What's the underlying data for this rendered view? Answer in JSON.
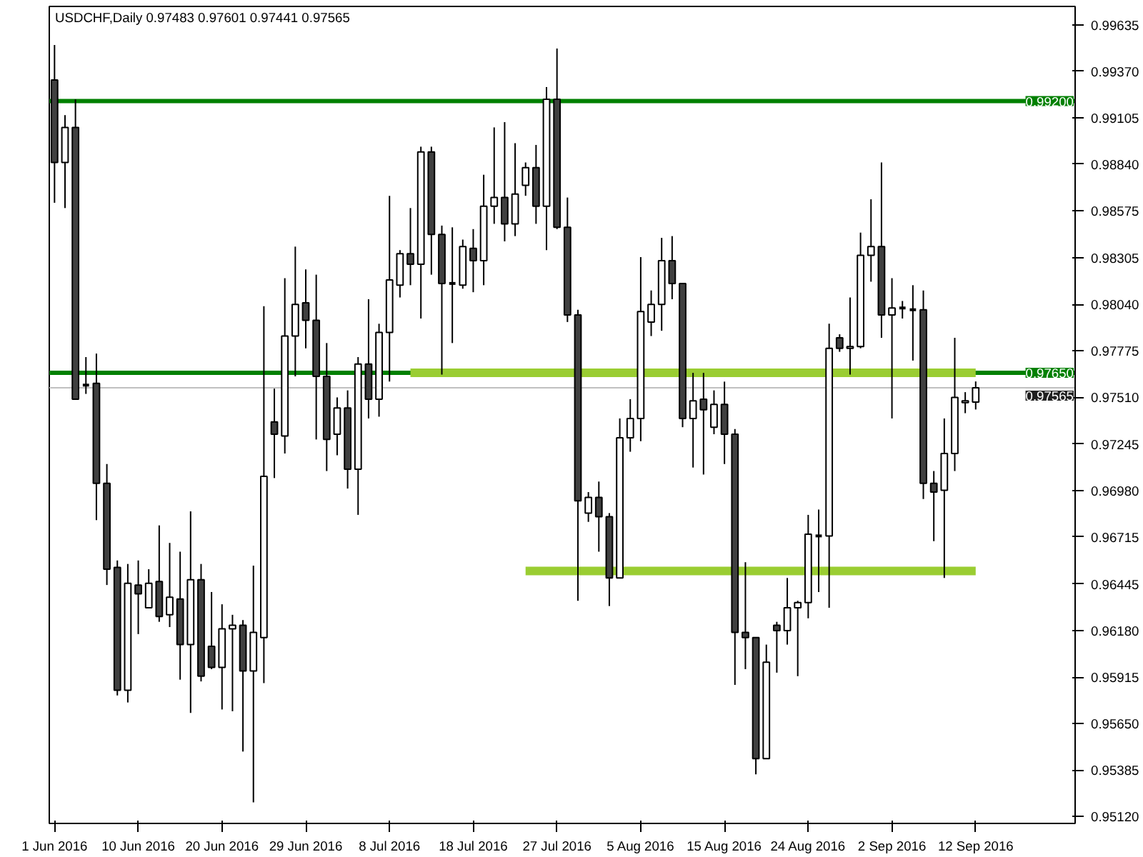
{
  "chart_data": {
    "type": "candlestick",
    "title": "USDCHF,Daily 0.97483 0.97601 0.97441 0.97565",
    "categories": [
      "1 Jun 2016",
      null,
      null,
      null,
      null,
      null,
      null,
      null,
      "10 Jun 2016",
      null,
      null,
      null,
      null,
      null,
      null,
      null,
      "20 Jun 2016",
      null,
      null,
      null,
      null,
      null,
      null,
      null,
      "29 Jun 2016",
      null,
      null,
      null,
      null,
      null,
      null,
      null,
      "8 Jul 2016",
      null,
      null,
      null,
      null,
      null,
      null,
      null,
      "18 Jul 2016",
      null,
      null,
      null,
      null,
      null,
      null,
      null,
      "27 Jul 2016",
      null,
      null,
      null,
      null,
      null,
      null,
      null,
      "5 Aug 2016",
      null,
      null,
      null,
      null,
      null,
      null,
      null,
      "15 Aug 2016",
      null,
      null,
      null,
      null,
      null,
      null,
      null,
      "24 Aug 2016",
      null,
      null,
      null,
      null,
      null,
      null,
      null,
      "2 Sep 2016",
      null,
      null,
      null,
      null,
      null,
      null,
      null,
      "12 Sep 2016"
    ],
    "ohlc": [
      [
        0.9932,
        0.9952,
        0.9862,
        0.9885
      ],
      [
        0.9885,
        0.9912,
        0.9859,
        0.9905
      ],
      [
        0.9905,
        0.9921,
        0.975,
        0.975
      ],
      [
        0.9758,
        0.9774,
        0.9753,
        0.9758
      ],
      [
        0.9759,
        0.9776,
        0.9681,
        0.9702
      ],
      [
        0.9702,
        0.9713,
        0.9644,
        0.9653
      ],
      [
        0.9654,
        0.9658,
        0.9581,
        0.9584
      ],
      [
        0.9584,
        0.9656,
        0.9577,
        0.9645
      ],
      [
        0.9644,
        0.9658,
        0.9616,
        0.9639
      ],
      [
        0.9631,
        0.9653,
        0.9631,
        0.9645
      ],
      [
        0.9646,
        0.9678,
        0.9623,
        0.9626
      ],
      [
        0.9627,
        0.9668,
        0.962,
        0.9637
      ],
      [
        0.9636,
        0.9663,
        0.959,
        0.961
      ],
      [
        0.961,
        0.9686,
        0.9571,
        0.9647
      ],
      [
        0.9647,
        0.9656,
        0.9589,
        0.9592
      ],
      [
        0.9609,
        0.964,
        0.9596,
        0.9597
      ],
      [
        0.9597,
        0.9633,
        0.9573,
        0.9619
      ],
      [
        0.9619,
        0.9627,
        0.9572,
        0.9621
      ],
      [
        0.9621,
        0.9624,
        0.9549,
        0.9595
      ],
      [
        0.9595,
        0.9655,
        0.952,
        0.9617
      ],
      [
        0.9614,
        0.9803,
        0.9588,
        0.9706
      ],
      [
        0.9737,
        0.9756,
        0.9705,
        0.973
      ],
      [
        0.9729,
        0.9819,
        0.9719,
        0.9786
      ],
      [
        0.9786,
        0.9837,
        0.9763,
        0.9804
      ],
      [
        0.9805,
        0.9824,
        0.9779,
        0.9795
      ],
      [
        0.9795,
        0.9821,
        0.9727,
        0.9763
      ],
      [
        0.9763,
        0.9782,
        0.9709,
        0.9727
      ],
      [
        0.973,
        0.9751,
        0.9718,
        0.9745
      ],
      [
        0.9745,
        0.9755,
        0.9699,
        0.971
      ],
      [
        0.971,
        0.9774,
        0.9684,
        0.977
      ],
      [
        0.977,
        0.9807,
        0.9739,
        0.975
      ],
      [
        0.975,
        0.9793,
        0.974,
        0.9788
      ],
      [
        0.9788,
        0.9866,
        0.976,
        0.9818
      ],
      [
        0.9815,
        0.9835,
        0.9808,
        0.9833
      ],
      [
        0.9833,
        0.9859,
        0.9815,
        0.9827
      ],
      [
        0.9827,
        0.9894,
        0.9796,
        0.9891
      ],
      [
        0.9891,
        0.9894,
        0.9821,
        0.9844
      ],
      [
        0.9844,
        0.9849,
        0.9764,
        0.9816
      ],
      [
        0.9816,
        0.9848,
        0.9782,
        0.9816
      ],
      [
        0.9815,
        0.9841,
        0.9813,
        0.9837
      ],
      [
        0.9836,
        0.9847,
        0.9811,
        0.9829
      ],
      [
        0.9829,
        0.9878,
        0.9815,
        0.986
      ],
      [
        0.986,
        0.9905,
        0.985,
        0.9865
      ],
      [
        0.9865,
        0.9908,
        0.984,
        0.985
      ],
      [
        0.985,
        0.9896,
        0.9843,
        0.9867
      ],
      [
        0.9872,
        0.9885,
        0.9866,
        0.9882
      ],
      [
        0.9882,
        0.9895,
        0.985,
        0.986
      ],
      [
        0.986,
        0.9928,
        0.9835,
        0.9921
      ],
      [
        0.9921,
        0.995,
        0.9847,
        0.9848
      ],
      [
        0.9848,
        0.9865,
        0.9794,
        0.9798
      ],
      [
        0.9798,
        0.9801,
        0.9635,
        0.9692
      ],
      [
        0.9685,
        0.9697,
        0.968,
        0.9694
      ],
      [
        0.9694,
        0.9703,
        0.9663,
        0.9683
      ],
      [
        0.9683,
        0.9685,
        0.9632,
        0.9648
      ],
      [
        0.9648,
        0.9739,
        0.9648,
        0.9728
      ],
      [
        0.9728,
        0.975,
        0.972,
        0.9739
      ],
      [
        0.9739,
        0.9831,
        0.9726,
        0.98
      ],
      [
        0.9794,
        0.9812,
        0.9786,
        0.9804
      ],
      [
        0.9804,
        0.9842,
        0.9789,
        0.9829
      ],
      [
        0.9829,
        0.9843,
        0.9807,
        0.9816
      ],
      [
        0.9816,
        0.9816,
        0.9734,
        0.9739
      ],
      [
        0.9739,
        0.9765,
        0.9711,
        0.9749
      ],
      [
        0.975,
        0.9765,
        0.9707,
        0.9744
      ],
      [
        0.9734,
        0.9755,
        0.973,
        0.9747
      ],
      [
        0.9747,
        0.976,
        0.9713,
        0.973
      ],
      [
        0.973,
        0.9733,
        0.9587,
        0.9617
      ],
      [
        0.9617,
        0.9657,
        0.9596,
        0.9614
      ],
      [
        0.9614,
        0.9614,
        0.9536,
        0.9545
      ],
      [
        0.9545,
        0.961,
        0.9545,
        0.96
      ],
      [
        0.9621,
        0.9623,
        0.9594,
        0.9618
      ],
      [
        0.9618,
        0.9648,
        0.961,
        0.9631
      ],
      [
        0.9631,
        0.9635,
        0.9592,
        0.9634
      ],
      [
        0.9634,
        0.9684,
        0.9625,
        0.9673
      ],
      [
        0.9672,
        0.9687,
        0.964,
        0.9672
      ],
      [
        0.9672,
        0.9793,
        0.9631,
        0.9779
      ],
      [
        0.9785,
        0.9787,
        0.9777,
        0.9779
      ],
      [
        0.9779,
        0.9808,
        0.9764,
        0.978
      ],
      [
        0.978,
        0.9845,
        0.9779,
        0.9832
      ],
      [
        0.9832,
        0.9864,
        0.9817,
        0.9837
      ],
      [
        0.9837,
        0.9885,
        0.9785,
        0.9798
      ],
      [
        0.9798,
        0.9819,
        0.9739,
        0.9802
      ],
      [
        0.9802,
        0.9806,
        0.9796,
        0.9802
      ],
      [
        0.9801,
        0.9815,
        0.9772,
        0.9801
      ],
      [
        0.9801,
        0.9812,
        0.9693,
        0.9702
      ],
      [
        0.9702,
        0.9709,
        0.9669,
        0.9697
      ],
      [
        0.9698,
        0.9739,
        0.9648,
        0.9719
      ],
      [
        0.9719,
        0.9785,
        0.9709,
        0.9751
      ],
      [
        0.9748,
        0.9754,
        0.9742,
        0.9749
      ],
      [
        0.97483,
        0.97601,
        0.97441,
        0.97565
      ]
    ],
    "series": [
      {
        "type": "line",
        "color": "#9acd32",
        "values": [
          null,
          null,
          null,
          null,
          null,
          null,
          null,
          null,
          null,
          null,
          null,
          null,
          null,
          null,
          null,
          null,
          null,
          null,
          null,
          null,
          null,
          null,
          null,
          null,
          null,
          null,
          null,
          null,
          null,
          null,
          null,
          null,
          null,
          null,
          0.9765,
          0.9765,
          0.9765,
          0.9765,
          0.9765,
          0.9765,
          0.9765,
          0.9765,
          0.9765,
          0.9765,
          0.9765,
          0.9765,
          0.9765,
          0.9765,
          0.9765,
          0.9765,
          0.9765,
          0.9765,
          0.9765,
          0.9765,
          0.9765,
          0.9765,
          0.9765,
          0.9765,
          0.9765,
          0.9765,
          0.9765,
          0.9765,
          0.9765,
          0.9765,
          0.9765,
          0.9765,
          0.9765,
          0.9765,
          0.9765,
          0.9765,
          0.9765,
          0.9765,
          0.9765,
          0.9765,
          0.9765,
          0.9765,
          0.9765,
          0.9765,
          0.9765,
          0.9765,
          0.9765,
          0.9765,
          0.9765,
          0.9765,
          0.9765,
          0.9765,
          0.9765,
          0.9765,
          0.9765
        ]
      },
      {
        "type": "line",
        "color": "#9acd32",
        "values": [
          null,
          null,
          null,
          null,
          null,
          null,
          null,
          null,
          null,
          null,
          null,
          null,
          null,
          null,
          null,
          null,
          null,
          null,
          null,
          null,
          null,
          null,
          null,
          null,
          null,
          null,
          null,
          null,
          null,
          null,
          null,
          null,
          null,
          null,
          null,
          null,
          null,
          null,
          null,
          null,
          null,
          null,
          null,
          null,
          null,
          0.9652,
          0.9652,
          0.9652,
          0.9652,
          0.9652,
          0.9652,
          0.9652,
          0.9652,
          0.9652,
          0.9652,
          0.9652,
          0.9652,
          0.9652,
          0.9652,
          0.9652,
          0.9652,
          0.9652,
          0.9652,
          0.9652,
          0.9652,
          0.9652,
          0.9652,
          0.9652,
          0.9652,
          0.9652,
          0.9652,
          0.9652,
          0.9652,
          0.9652,
          0.9652,
          0.9652,
          0.9652,
          0.9652,
          0.9652,
          0.9652,
          0.9652,
          0.9652,
          0.9652,
          0.9652,
          0.9652,
          0.9652,
          0.9652,
          0.9652,
          0.9652
        ]
      }
    ],
    "ylim": [
      0.9508,
      0.9974
    ],
    "yticks": [
      {
        "value": 0.99635,
        "label": "0.99635"
      },
      {
        "value": 0.9937,
        "label": "0.99370"
      },
      {
        "value": 0.99105,
        "label": "0.99105"
      },
      {
        "value": 0.9884,
        "label": "0.98840"
      },
      {
        "value": 0.98575,
        "label": "0.98575"
      },
      {
        "value": 0.98305,
        "label": "0.98305"
      },
      {
        "value": 0.9804,
        "label": "0.98040"
      },
      {
        "value": 0.97775,
        "label": "0.97775"
      },
      {
        "value": 0.9751,
        "label": "0.97510"
      },
      {
        "value": 0.97245,
        "label": "0.97245"
      },
      {
        "value": 0.9698,
        "label": "0.96980"
      },
      {
        "value": 0.96715,
        "label": "0.96715"
      },
      {
        "value": 0.96445,
        "label": "0.96445"
      },
      {
        "value": 0.9618,
        "label": "0.96180"
      },
      {
        "value": 0.95915,
        "label": "0.95915"
      },
      {
        "value": 0.9565,
        "label": "0.95650"
      },
      {
        "value": 0.95385,
        "label": "0.95385"
      },
      {
        "value": 0.9512,
        "label": "0.95120"
      }
    ],
    "ref_lines": [
      {
        "axis": "y",
        "value": 0.992,
        "label": "0.99200",
        "color": "#008000"
      },
      {
        "axis": "y",
        "value": 0.9765,
        "label": "0.97650",
        "color": "#008000"
      },
      {
        "axis": "y",
        "value": 0.97565,
        "label": "0.97565",
        "color": "#c0c0c0"
      }
    ],
    "grid": false
  }
}
